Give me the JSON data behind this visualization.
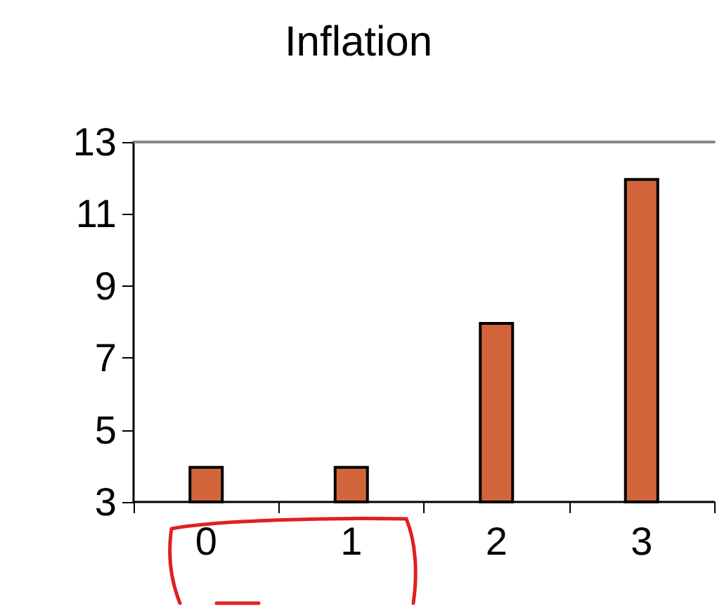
{
  "chart_data": {
    "type": "bar",
    "title": "Inflation",
    "categories": [
      "0",
      "1",
      "2",
      "3"
    ],
    "values": [
      4,
      4,
      8,
      12
    ],
    "color": "#d2643c",
    "ylim": [
      3,
      13
    ],
    "yticks": [
      3,
      5,
      7,
      9,
      11,
      13
    ],
    "grid": false
  }
}
